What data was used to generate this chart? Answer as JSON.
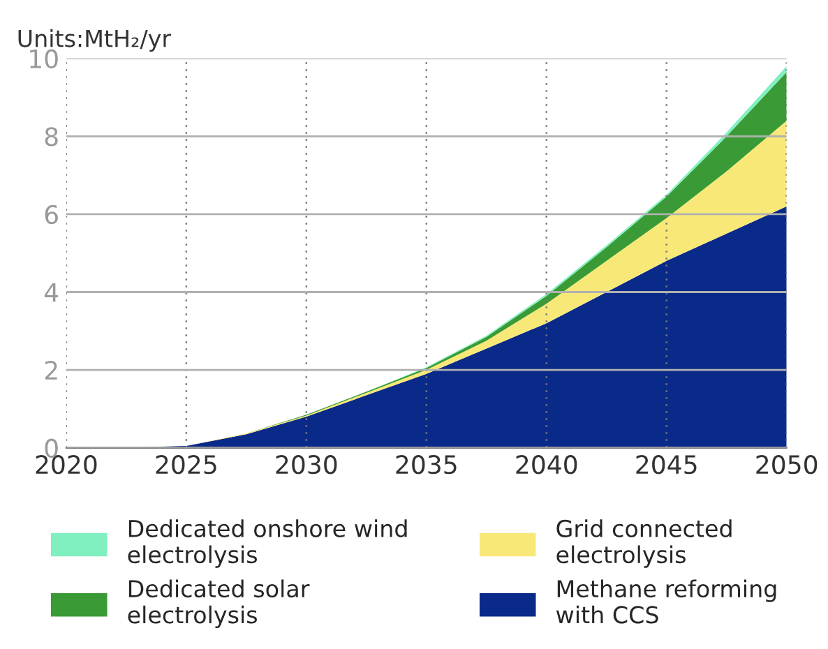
{
  "chart_data": {
    "type": "area",
    "stacked": true,
    "title": "Units:MtH₂/yr",
    "x": [
      2020,
      2022.5,
      2025,
      2027.5,
      2030,
      2032.5,
      2035,
      2037.5,
      2040,
      2042.5,
      2045,
      2047.5,
      2050
    ],
    "series": [
      {
        "name": "Methane reforming\nwith CCS",
        "color": "#0a2a8a",
        "values": [
          0,
          0,
          0.05,
          0.35,
          0.8,
          1.35,
          1.9,
          2.55,
          3.2,
          4.0,
          4.8,
          5.5,
          6.2
        ]
      },
      {
        "name": "Grid connected\nelectrolysis",
        "color": "#f8e878",
        "values": [
          0,
          0,
          0,
          0.02,
          0.03,
          0.06,
          0.1,
          0.2,
          0.5,
          0.8,
          1.1,
          1.6,
          2.2
        ]
      },
      {
        "name": "Dedicated solar\nelectrolysis",
        "color": "#3a9a35",
        "values": [
          0,
          0,
          0,
          0,
          0.02,
          0.03,
          0.05,
          0.1,
          0.2,
          0.35,
          0.55,
          0.9,
          1.25
        ]
      },
      {
        "name": "Dedicated onshore wind\nelectrolysis",
        "color": "#80f0c0",
        "values": [
          0,
          0,
          0,
          0,
          0,
          0,
          0.02,
          0.03,
          0.05,
          0.05,
          0.05,
          0.1,
          0.15
        ]
      }
    ],
    "xlim": [
      2020,
      2050
    ],
    "xticks": [
      2020,
      2025,
      2030,
      2035,
      2040,
      2045,
      2050
    ],
    "ylim": [
      0,
      10
    ],
    "yticks": [
      0,
      2,
      4,
      6,
      8,
      10
    ],
    "grid": true,
    "legend": "bottom"
  }
}
